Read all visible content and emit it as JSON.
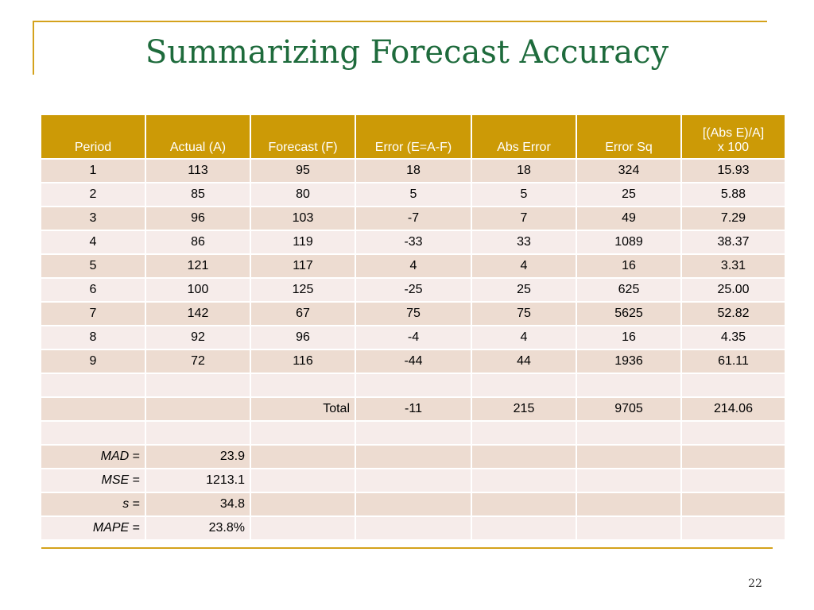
{
  "slide": {
    "title": "Summarizing Forecast Accuracy",
    "page_number": "22"
  },
  "table": {
    "headers": [
      "Period",
      "Actual (A)",
      "Forecast (F)",
      "Error (E=A-F)",
      "Abs Error",
      "Error Sq",
      "[(Abs E)/A]\nx 100"
    ],
    "rows": [
      [
        "1",
        "113",
        "95",
        "18",
        "18",
        "324",
        "15.93"
      ],
      [
        "2",
        "85",
        "80",
        "5",
        "5",
        "25",
        "5.88"
      ],
      [
        "3",
        "96",
        "103",
        "-7",
        "7",
        "49",
        "7.29"
      ],
      [
        "4",
        "86",
        "119",
        "-33",
        "33",
        "1089",
        "38.37"
      ],
      [
        "5",
        "121",
        "117",
        "4",
        "4",
        "16",
        "3.31"
      ],
      [
        "6",
        "100",
        "125",
        "-25",
        "25",
        "625",
        "25.00"
      ],
      [
        "7",
        "142",
        "67",
        "75",
        "75",
        "5625",
        "52.82"
      ],
      [
        "8",
        "92",
        "96",
        "-4",
        "4",
        "16",
        "4.35"
      ],
      [
        "9",
        "72",
        "116",
        "-44",
        "44",
        "1936",
        "61.11"
      ],
      [
        "",
        "",
        "",
        "",
        "",
        "",
        ""
      ],
      [
        "",
        "",
        "Total",
        "-11",
        "215",
        "9705",
        "214.06"
      ],
      [
        "",
        "",
        "",
        "",
        "",
        "",
        ""
      ]
    ],
    "summary": [
      {
        "label": "MAD",
        "eq": " =",
        "value": "23.9"
      },
      {
        "label": "MSE",
        "eq": " =",
        "value": "1213.1"
      },
      {
        "label": "s",
        "eq": " =",
        "value": "34.8"
      },
      {
        "label": "MAPE",
        "eq": " =",
        "value": "23.8%"
      }
    ]
  },
  "colors": {
    "header_bg": "#cc9a06",
    "row_odd": "#eddcd1",
    "row_even": "#f6ecea",
    "title": "#1e6b3c",
    "accent_line": "#d4a21c"
  }
}
